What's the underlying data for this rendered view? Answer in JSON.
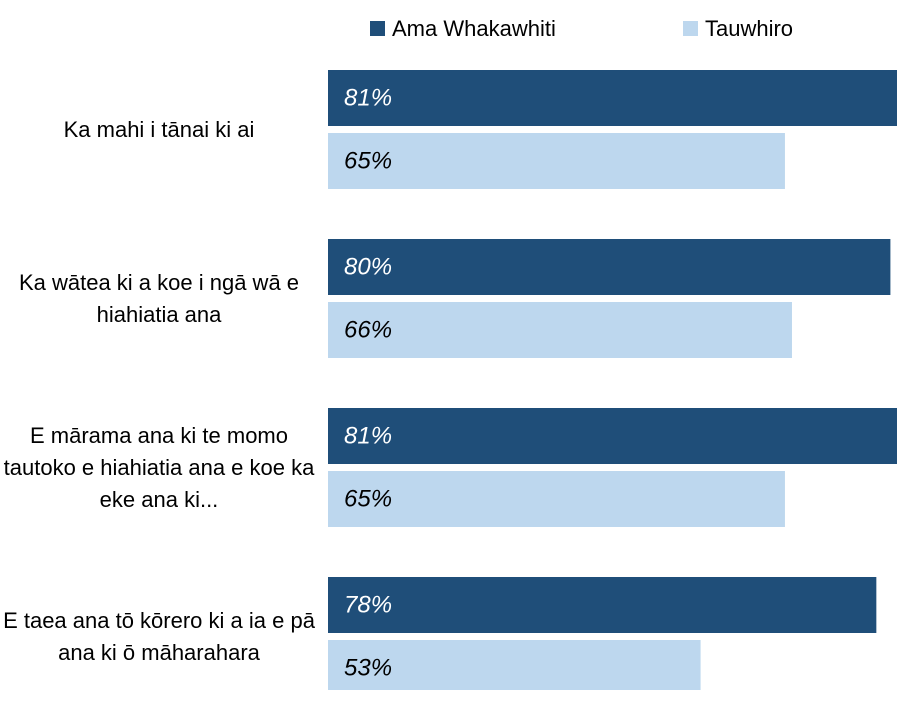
{
  "chart_data": {
    "type": "bar",
    "orientation": "horizontal",
    "categories": [
      "Ka mahi i tānai ki ai",
      "Ka wātea ki a koe i ngā wā e hiahiatia ana",
      "E mārama ana ki te momo tautoko e hiahiatia ana e koe ka eke ana ki...",
      "E taea ana tō kōrero ki a ia e pā ana ki ō māharahara"
    ],
    "series": [
      {
        "name": "Ama Whakawhiti",
        "color": "#1f4e79",
        "values": [
          81,
          80,
          81,
          78
        ],
        "value_labels": [
          "81%",
          "80%",
          "81%",
          "78%"
        ]
      },
      {
        "name": "Tauwhiro",
        "color": "#bdd7ee",
        "values": [
          65,
          66,
          65,
          53
        ],
        "value_labels": [
          "65%",
          "66%",
          "65%",
          "53%"
        ]
      }
    ],
    "legend": "top"
  }
}
